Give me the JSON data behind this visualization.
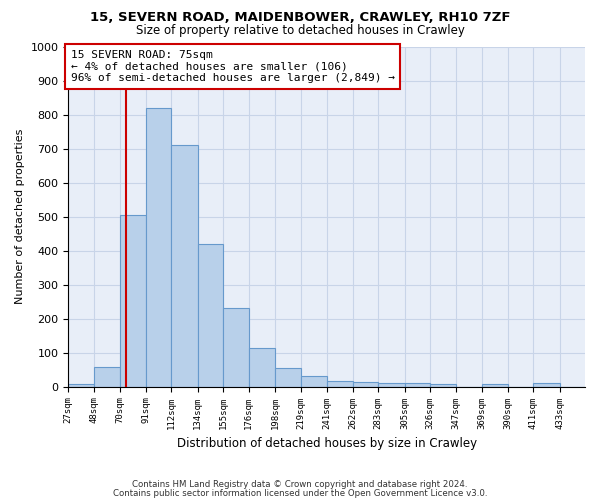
{
  "title1": "15, SEVERN ROAD, MAIDENBOWER, CRAWLEY, RH10 7ZF",
  "title2": "Size of property relative to detached houses in Crawley",
  "xlabel": "Distribution of detached houses by size in Crawley",
  "ylabel": "Number of detached properties",
  "bin_edges": [
    27,
    48,
    70,
    91,
    112,
    134,
    155,
    176,
    198,
    219,
    241,
    262,
    283,
    305,
    326,
    347,
    369,
    390,
    411,
    433,
    454
  ],
  "bar_values": [
    8,
    57,
    505,
    820,
    710,
    418,
    230,
    115,
    55,
    32,
    18,
    14,
    10,
    12,
    8,
    0,
    8,
    0,
    10,
    0
  ],
  "bar_color": "#b8d0ea",
  "bar_edge_color": "#6699cc",
  "property_size": 75,
  "vline_color": "#cc0000",
  "annotation_text": "15 SEVERN ROAD: 75sqm\n← 4% of detached houses are smaller (106)\n96% of semi-detached houses are larger (2,849) →",
  "annotation_box_color": "#ffffff",
  "annotation_box_edge": "#cc0000",
  "ylim": [
    0,
    1000
  ],
  "yticks": [
    0,
    100,
    200,
    300,
    400,
    500,
    600,
    700,
    800,
    900,
    1000
  ],
  "footnote1": "Contains HM Land Registry data © Crown copyright and database right 2024.",
  "footnote2": "Contains public sector information licensed under the Open Government Licence v3.0.",
  "grid_color": "#c8d4e8",
  "background_color": "#e8eef8"
}
